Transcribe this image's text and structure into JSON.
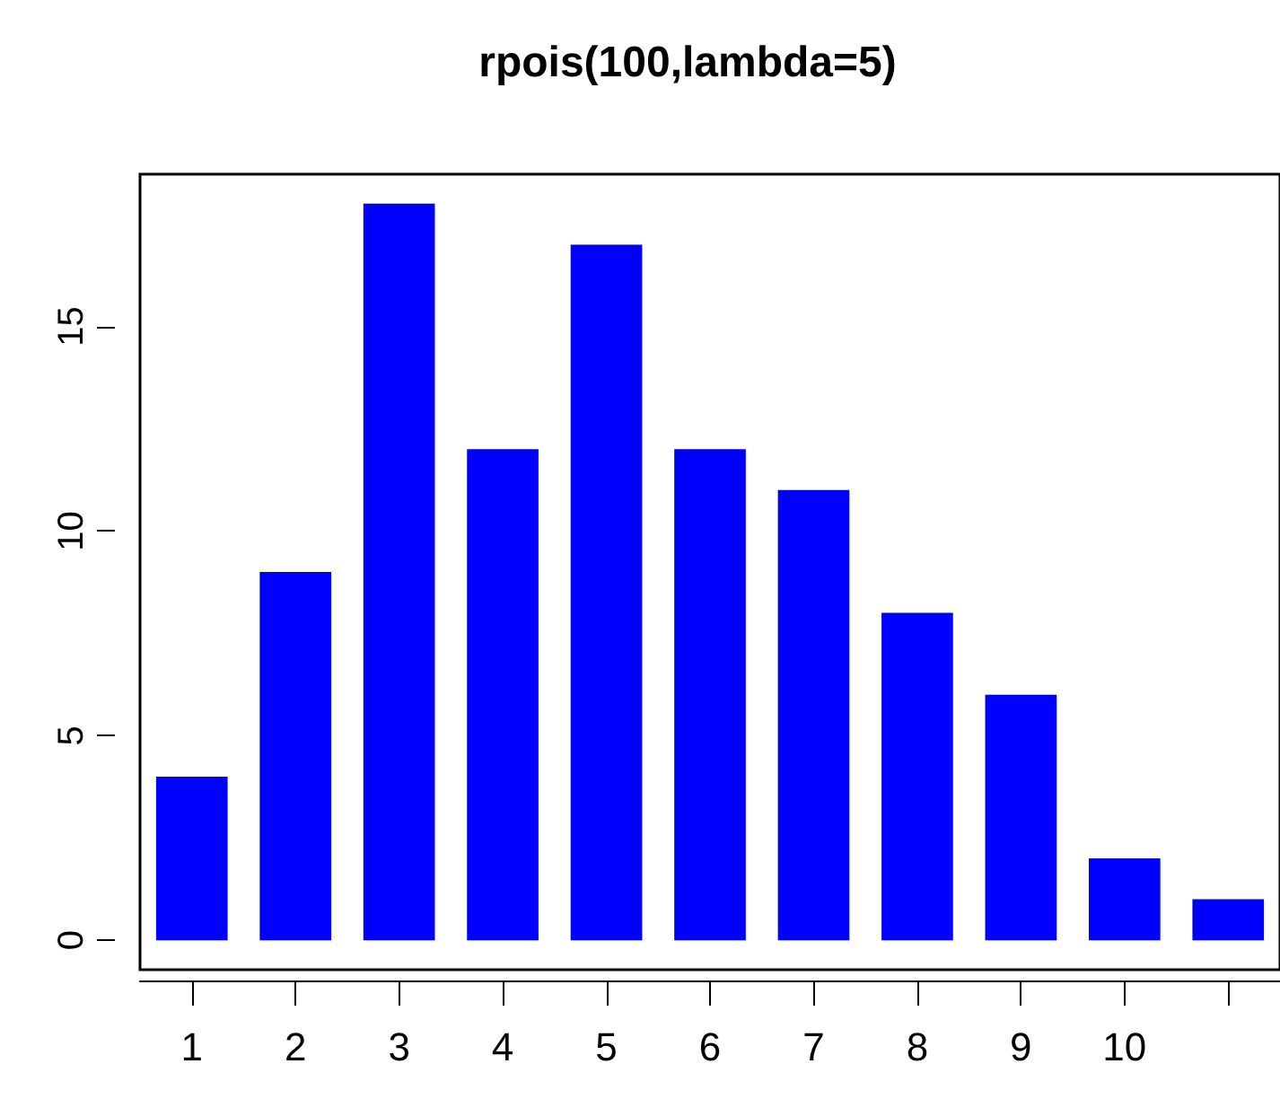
{
  "chart_data": {
    "type": "bar",
    "title": "rpois(100,lambda=5)",
    "categories": [
      "1",
      "2",
      "3",
      "4",
      "5",
      "6",
      "7",
      "8",
      "9",
      "10",
      null
    ],
    "values": [
      4,
      9,
      18,
      12,
      17,
      12,
      11,
      8,
      6,
      2,
      1
    ],
    "color": "#0000ff",
    "ylim": [
      -0.72,
      18.72
    ],
    "yticks": [
      0,
      5,
      10,
      15
    ],
    "grid": false
  }
}
